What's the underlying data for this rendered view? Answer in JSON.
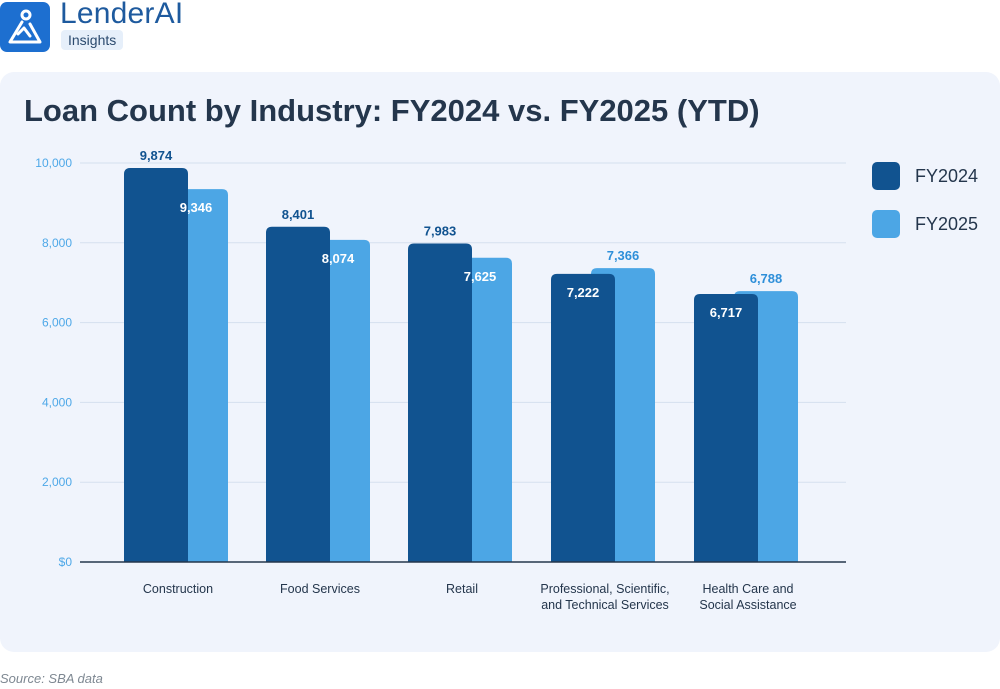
{
  "brand": {
    "name": "LenderAI",
    "badge": "Insights",
    "logo_icon": "triangle-person-logo-icon"
  },
  "colors": {
    "fy2024": "#115390",
    "fy2025": "#4ca6e5",
    "card_bg": "#f0f4fc",
    "axis_tick": "#4ea8e8",
    "label_dark": "#115390",
    "label_light": "#2e8fd9"
  },
  "chart_data": {
    "type": "bar",
    "title": "Loan Count by Industry: FY2024 vs. FY2025 (YTD)",
    "xlabel": "",
    "ylabel": "",
    "ylim": [
      0,
      10000
    ],
    "yticks": [
      {
        "value": 0,
        "label": "$0"
      },
      {
        "value": 2000,
        "label": "2,000"
      },
      {
        "value": 4000,
        "label": "4,000"
      },
      {
        "value": 6000,
        "label": "6,000"
      },
      {
        "value": 8000,
        "label": "8,000"
      },
      {
        "value": 10000,
        "label": "10,000"
      }
    ],
    "grid": true,
    "legend_position": "right",
    "categories": [
      [
        "Construction"
      ],
      [
        "Food Services"
      ],
      [
        "Retail"
      ],
      [
        "Professional, Scientific,",
        "and Technical Services"
      ],
      [
        "Health Care and",
        "Social Assistance"
      ]
    ],
    "series": [
      {
        "name": "FY2024",
        "values": [
          9874,
          8401,
          7983,
          7222,
          6717
        ],
        "labels": [
          "9,874",
          "8,401",
          "7,983",
          "7,222",
          "6,717"
        ]
      },
      {
        "name": "FY2025",
        "values": [
          9346,
          8074,
          7625,
          7366,
          6788
        ],
        "labels": [
          "9,346",
          "8,074",
          "7,625",
          "7,366",
          "6,788"
        ]
      }
    ]
  },
  "source": "Source: SBA data"
}
